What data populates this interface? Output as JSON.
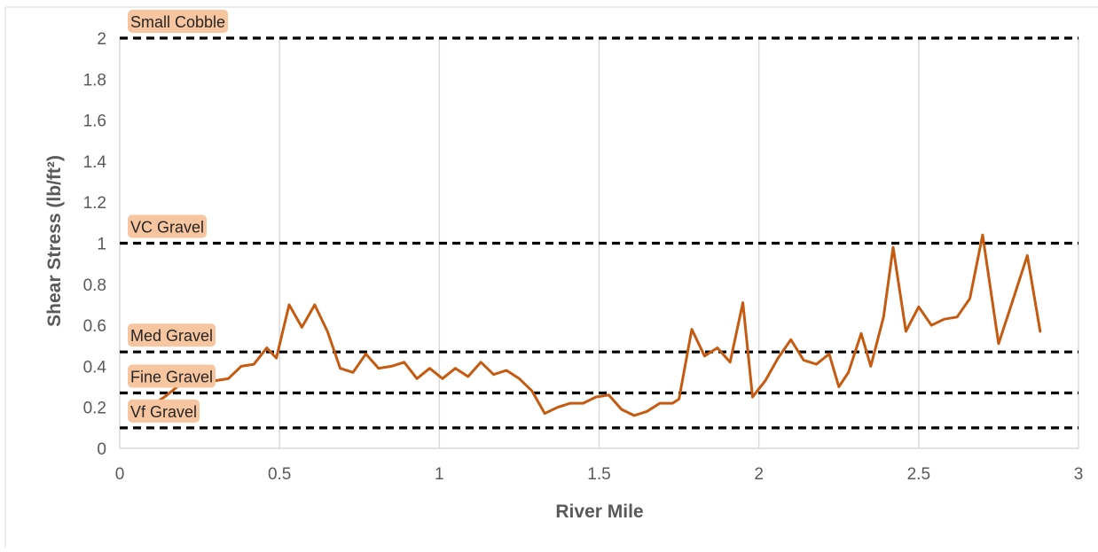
{
  "chart_data": {
    "type": "line",
    "title": "",
    "xlabel": "River Mile",
    "ylabel": "Shear Stress (lb/ft²)",
    "xlim": [
      0,
      3
    ],
    "ylim": [
      0,
      2
    ],
    "x_ticks": [
      0,
      0.5,
      1,
      1.5,
      2,
      2.5,
      3
    ],
    "x_tick_labels": [
      "0",
      "0.5",
      "1",
      "1.5",
      "2",
      "2.5",
      "3"
    ],
    "y_ticks": [
      0,
      0.2,
      0.4,
      0.6,
      0.8,
      1,
      1.2,
      1.4,
      1.6,
      1.8,
      2
    ],
    "y_tick_labels": [
      "0",
      "0.2",
      "0.4",
      "0.6",
      "0.8",
      "1",
      "1.2",
      "1.4",
      "1.6",
      "1.8",
      "2"
    ],
    "grid": "vertical",
    "legend": "none",
    "series": [
      {
        "color": "#c55a11",
        "x": [
          0.06,
          0.1,
          0.14,
          0.18,
          0.22,
          0.26,
          0.3,
          0.34,
          0.38,
          0.42,
          0.46,
          0.49,
          0.53,
          0.57,
          0.61,
          0.65,
          0.69,
          0.73,
          0.77,
          0.81,
          0.85,
          0.89,
          0.93,
          0.97,
          1.01,
          1.05,
          1.09,
          1.13,
          1.17,
          1.21,
          1.25,
          1.29,
          1.33,
          1.37,
          1.41,
          1.45,
          1.49,
          1.53,
          1.57,
          1.61,
          1.65,
          1.69,
          1.73,
          1.75,
          1.79,
          1.83,
          1.87,
          1.91,
          1.95,
          1.98,
          2.02,
          2.06,
          2.1,
          2.14,
          2.18,
          2.22,
          2.25,
          2.28,
          2.32,
          2.35,
          2.39,
          2.42,
          2.46,
          2.5,
          2.54,
          2.58,
          2.62,
          2.66,
          2.7,
          2.75,
          2.79,
          2.84,
          2.88
        ],
        "values": [
          0.18,
          0.21,
          0.25,
          0.3,
          0.38,
          0.33,
          0.33,
          0.34,
          0.4,
          0.41,
          0.49,
          0.44,
          0.7,
          0.59,
          0.7,
          0.57,
          0.39,
          0.37,
          0.46,
          0.39,
          0.4,
          0.42,
          0.34,
          0.39,
          0.34,
          0.39,
          0.35,
          0.42,
          0.36,
          0.38,
          0.34,
          0.28,
          0.17,
          0.2,
          0.22,
          0.22,
          0.25,
          0.26,
          0.19,
          0.16,
          0.18,
          0.22,
          0.22,
          0.24,
          0.58,
          0.45,
          0.49,
          0.42,
          0.71,
          0.25,
          0.33,
          0.44,
          0.53,
          0.43,
          0.41,
          0.46,
          0.3,
          0.37,
          0.56,
          0.4,
          0.64,
          0.98,
          0.57,
          0.69,
          0.6,
          0.63,
          0.64,
          0.73,
          1.04,
          0.51,
          0.7,
          0.94,
          0.57
        ]
      }
    ],
    "reference_lines": [
      {
        "label": "Small Cobble",
        "value": 2.0
      },
      {
        "label": "VC Gravel",
        "value": 1.0
      },
      {
        "label": "Med Gravel",
        "value": 0.47
      },
      {
        "label": "Fine Gravel",
        "value": 0.27
      },
      {
        "label": "Vf Gravel",
        "value": 0.1
      }
    ],
    "colors": {
      "line": "#c55a11",
      "reference_line": "#000000",
      "label_highlight": "#f7c59f",
      "axis_text": "#595959",
      "grid": "#d9d9d9"
    }
  }
}
